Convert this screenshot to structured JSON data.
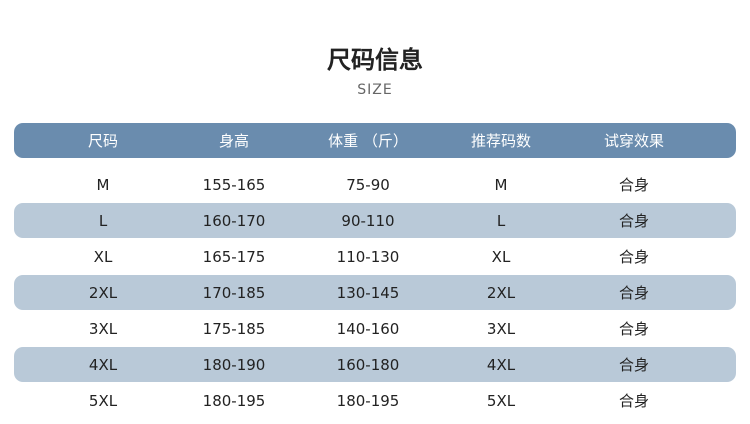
{
  "title": "尺码信息",
  "subtitle": "SIZE",
  "headers": [
    "尺码",
    "身高",
    "体重 （斤）",
    "推荐码数",
    "试穿效果"
  ],
  "rows": [
    [
      "M",
      "155-165",
      "75-90",
      "M",
      "合身"
    ],
    [
      "L",
      "160-170",
      "90-110",
      "L",
      "合身"
    ],
    [
      "XL",
      "165-175",
      "110-130",
      "XL",
      "合身"
    ],
    [
      "2XL",
      "170-185",
      "130-145",
      "2XL",
      "合身"
    ],
    [
      "3XL",
      "175-185",
      "140-160",
      "3XL",
      "合身"
    ],
    [
      "4XL",
      "180-190",
      "160-180",
      "4XL",
      "合身"
    ],
    [
      "5XL",
      "180-195",
      "180-195",
      "5XL",
      "合身"
    ]
  ],
  "colors": {
    "header": "#6a8cae",
    "stripe": "#b9c9d8"
  }
}
